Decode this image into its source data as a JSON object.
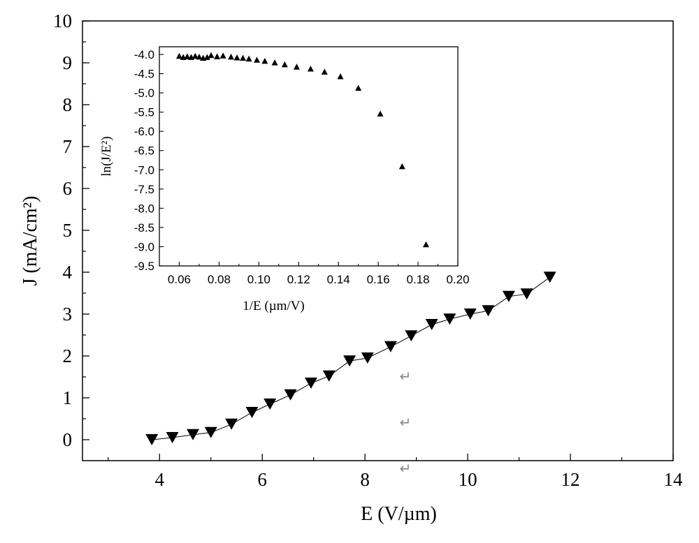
{
  "chart_data": [
    {
      "type": "line",
      "role": "main",
      "title": "",
      "xlabel": "E (V/µm)",
      "ylabel": "J (mA/cm²)",
      "xlim": [
        2.5,
        14
      ],
      "ylim": [
        -0.5,
        10
      ],
      "xticks": [
        4,
        6,
        8,
        10,
        12,
        14
      ],
      "yticks": [
        0,
        1,
        2,
        3,
        4,
        5,
        6,
        7,
        8,
        9,
        10
      ],
      "grid": false,
      "marker": "filled-down-triangle",
      "series": [
        {
          "x": [
            3.85,
            4.25,
            4.65,
            5.0,
            5.4,
            5.8,
            6.15,
            6.55,
            6.95,
            7.3,
            7.7,
            8.05,
            8.5,
            8.9,
            9.3,
            9.65,
            10.05,
            10.4,
            10.8,
            11.15,
            11.6
          ],
          "y": [
            0.0,
            0.05,
            0.12,
            0.17,
            0.37,
            0.65,
            0.85,
            1.07,
            1.35,
            1.52,
            1.88,
            1.95,
            2.22,
            2.48,
            2.75,
            2.88,
            3.0,
            3.08,
            3.42,
            3.48,
            3.88
          ]
        }
      ],
      "annotations": [
        "↵",
        "↵",
        "↵"
      ]
    },
    {
      "type": "scatter",
      "role": "inset",
      "title": "",
      "xlabel": "1/E (µm/V)",
      "ylabel": "ln(J/E²)",
      "xlim": [
        0.05,
        0.2
      ],
      "ylim": [
        -9.5,
        -3.8
      ],
      "xticks": [
        "0.06",
        "0.08",
        "0.10",
        "0.12",
        "0.14",
        "0.16",
        "0.18",
        "0.20"
      ],
      "yticks": [
        "-4.0",
        "-4.5",
        "-5.0",
        "-5.5",
        "-6.0",
        "-6.5",
        "-7.0",
        "-7.5",
        "-8.0",
        "-8.5",
        "-9.0",
        "-9.5"
      ],
      "grid": false,
      "marker": "filled-up-triangle",
      "series": [
        {
          "x": [
            0.06,
            0.062,
            0.064,
            0.066,
            0.068,
            0.07,
            0.072,
            0.074,
            0.076,
            0.079,
            0.082,
            0.086,
            0.089,
            0.092,
            0.095,
            0.099,
            0.103,
            0.108,
            0.113,
            0.119,
            0.126,
            0.133,
            0.141,
            0.15,
            0.161,
            0.172,
            0.184
          ],
          "y": [
            -4.05,
            -4.08,
            -4.06,
            -4.08,
            -4.05,
            -4.07,
            -4.1,
            -4.08,
            -4.03,
            -4.06,
            -4.04,
            -4.07,
            -4.09,
            -4.1,
            -4.12,
            -4.15,
            -4.18,
            -4.22,
            -4.27,
            -4.33,
            -4.38,
            -4.46,
            -4.58,
            -4.88,
            -5.55,
            -6.92,
            -8.95
          ]
        }
      ]
    }
  ]
}
